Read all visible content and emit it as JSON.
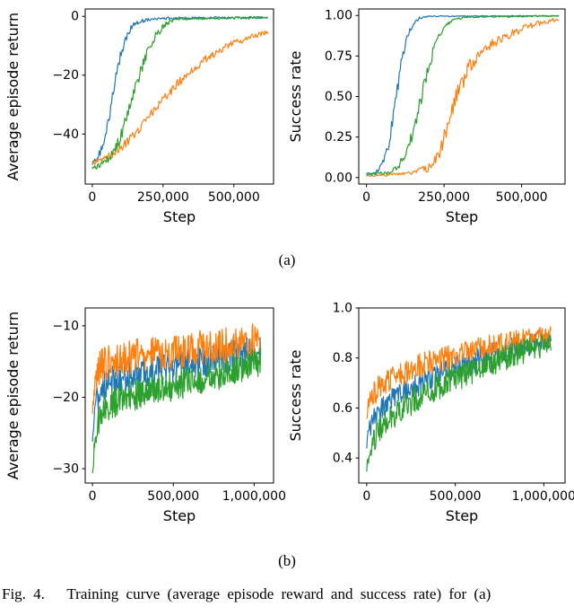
{
  "figure": {
    "panel_a_label": "(a)",
    "panel_b_label": "(b)",
    "caption": "Fig. 4.   Training curve (average episode reward and success rate) for (a)"
  },
  "palette": {
    "blue": "#1f77b4",
    "orange": "#ff7f0e",
    "green": "#2ca02c"
  },
  "chart_data": [
    {
      "id": "a_return",
      "type": "line",
      "panel": "a",
      "title": "",
      "xlabel": "Step",
      "ylabel": "Average episode return",
      "xlim": [
        -25000,
        640000
      ],
      "ylim": [
        -57,
        2.5
      ],
      "xticks": [
        {
          "v": 0,
          "label": "0"
        },
        {
          "v": 250000,
          "label": "250,000"
        },
        {
          "v": 500000,
          "label": "500,000"
        }
      ],
      "yticks": [
        {
          "v": 0,
          "label": "0"
        },
        {
          "v": -20,
          "label": "−20"
        },
        {
          "v": -40,
          "label": "−40"
        }
      ],
      "grid": false,
      "legend": "none",
      "samples": 200,
      "value_range": null,
      "series": [
        {
          "name": "blue",
          "color": "#1f77b4",
          "anchors": [
            [
              0,
              -50,
              0.8
            ],
            [
              20000,
              -48,
              1.2
            ],
            [
              40000,
              -43,
              1.5
            ],
            [
              60000,
              -34,
              2
            ],
            [
              80000,
              -23,
              2
            ],
            [
              100000,
              -13,
              1.8
            ],
            [
              120000,
              -7,
              1.5
            ],
            [
              140000,
              -3.5,
              1
            ],
            [
              160000,
              -2,
              0.8
            ],
            [
              200000,
              -1,
              0.5
            ],
            [
              300000,
              -0.6,
              0.4
            ],
            [
              620000,
              -0.4,
              0.4
            ]
          ]
        },
        {
          "name": "orange",
          "color": "#ff7f0e",
          "anchors": [
            [
              0,
              -50,
              0.8
            ],
            [
              40000,
              -48.5,
              1
            ],
            [
              80000,
              -46.5,
              1.2
            ],
            [
              120000,
              -43,
              1.5
            ],
            [
              160000,
              -39,
              1.5
            ],
            [
              200000,
              -34,
              1.5
            ],
            [
              250000,
              -28,
              1.5
            ],
            [
              300000,
              -23,
              1.5
            ],
            [
              350000,
              -18.5,
              1.3
            ],
            [
              400000,
              -14.5,
              1.3
            ],
            [
              450000,
              -11.5,
              1.2
            ],
            [
              500000,
              -9,
              1.2
            ],
            [
              560000,
              -7,
              1
            ],
            [
              620000,
              -5.5,
              1
            ]
          ]
        },
        {
          "name": "green",
          "color": "#2ca02c",
          "anchors": [
            [
              0,
              -52,
              0.8
            ],
            [
              40000,
              -50,
              1.2
            ],
            [
              70000,
              -47,
              1.5
            ],
            [
              100000,
              -41,
              2
            ],
            [
              130000,
              -31,
              2
            ],
            [
              160000,
              -22,
              2
            ],
            [
              190000,
              -13,
              1.8
            ],
            [
              220000,
              -7,
              1.5
            ],
            [
              250000,
              -3.5,
              1
            ],
            [
              280000,
              -1.5,
              0.7
            ],
            [
              320000,
              -0.8,
              0.5
            ],
            [
              620000,
              -0.4,
              0.4
            ]
          ]
        }
      ]
    },
    {
      "id": "a_success",
      "type": "line",
      "panel": "a",
      "title": "",
      "xlabel": "Step",
      "ylabel": "Success rate",
      "xlim": [
        -25000,
        640000
      ],
      "ylim": [
        -0.04,
        1.04
      ],
      "xticks": [
        {
          "v": 0,
          "label": "0"
        },
        {
          "v": 250000,
          "label": "250,000"
        },
        {
          "v": 500000,
          "label": "500,000"
        }
      ],
      "yticks": [
        {
          "v": 1.0,
          "label": "1.00"
        },
        {
          "v": 0.75,
          "label": "0.75"
        },
        {
          "v": 0.5,
          "label": "0.50"
        },
        {
          "v": 0.25,
          "label": "0.25"
        },
        {
          "v": 0.0,
          "label": "0.00"
        }
      ],
      "grid": false,
      "legend": "none",
      "samples": 200,
      "value_range": [
        0,
        1
      ],
      "series": [
        {
          "name": "blue",
          "color": "#1f77b4",
          "anchors": [
            [
              0,
              0.02,
              0.008
            ],
            [
              30000,
              0.03,
              0.01
            ],
            [
              50000,
              0.07,
              0.02
            ],
            [
              70000,
              0.18,
              0.035
            ],
            [
              90000,
              0.42,
              0.04
            ],
            [
              110000,
              0.68,
              0.035
            ],
            [
              130000,
              0.87,
              0.025
            ],
            [
              150000,
              0.95,
              0.015
            ],
            [
              170000,
              0.985,
              0.008
            ],
            [
              200000,
              0.995,
              0.004
            ],
            [
              620000,
              0.998,
              0.003
            ]
          ]
        },
        {
          "name": "orange",
          "color": "#ff7f0e",
          "anchors": [
            [
              0,
              0.01,
              0.006
            ],
            [
              100000,
              0.02,
              0.008
            ],
            [
              150000,
              0.03,
              0.012
            ],
            [
              200000,
              0.06,
              0.025
            ],
            [
              230000,
              0.12,
              0.04
            ],
            [
              260000,
              0.3,
              0.055
            ],
            [
              290000,
              0.5,
              0.055
            ],
            [
              330000,
              0.68,
              0.045
            ],
            [
              370000,
              0.78,
              0.035
            ],
            [
              420000,
              0.84,
              0.03
            ],
            [
              470000,
              0.89,
              0.025
            ],
            [
              520000,
              0.93,
              0.02
            ],
            [
              570000,
              0.96,
              0.015
            ],
            [
              620000,
              0.975,
              0.012
            ]
          ]
        },
        {
          "name": "green",
          "color": "#2ca02c",
          "anchors": [
            [
              0,
              0.02,
              0.008
            ],
            [
              70000,
              0.03,
              0.01
            ],
            [
              100000,
              0.06,
              0.02
            ],
            [
              130000,
              0.15,
              0.035
            ],
            [
              160000,
              0.35,
              0.045
            ],
            [
              190000,
              0.6,
              0.045
            ],
            [
              220000,
              0.82,
              0.03
            ],
            [
              250000,
              0.93,
              0.02
            ],
            [
              280000,
              0.975,
              0.01
            ],
            [
              320000,
              0.99,
              0.005
            ],
            [
              620000,
              0.997,
              0.003
            ]
          ]
        }
      ]
    },
    {
      "id": "b_return",
      "type": "line",
      "panel": "b",
      "title": "",
      "xlabel": "Step",
      "ylabel": "Average episode return",
      "xlim": [
        -45000,
        1120000
      ],
      "ylim": [
        -32,
        -7.5
      ],
      "xticks": [
        {
          "v": 0,
          "label": "0"
        },
        {
          "v": 500000,
          "label": "500,000"
        },
        {
          "v": 1000000,
          "label": "1,000,000"
        }
      ],
      "yticks": [
        {
          "v": -10,
          "label": "−10"
        },
        {
          "v": -20,
          "label": "−20"
        },
        {
          "v": -30,
          "label": "−30"
        }
      ],
      "grid": false,
      "legend": "none",
      "samples": 320,
      "value_range": null,
      "series": [
        {
          "name": "blue",
          "color": "#1f77b4",
          "anchors": [
            [
              0,
              -26,
              0.8
            ],
            [
              15000,
              -22,
              1.8
            ],
            [
              40000,
              -19.5,
              2.2
            ],
            [
              80000,
              -18.3,
              2.2
            ],
            [
              150000,
              -17.5,
              2.2
            ],
            [
              300000,
              -16.6,
              2.2
            ],
            [
              500000,
              -15.8,
              2.2
            ],
            [
              700000,
              -15,
              2.2
            ],
            [
              900000,
              -14,
              2.2
            ],
            [
              1040000,
              -13.5,
              2.2
            ]
          ]
        },
        {
          "name": "orange",
          "color": "#ff7f0e",
          "anchors": [
            [
              0,
              -22,
              0.8
            ],
            [
              15000,
              -18,
              2
            ],
            [
              40000,
              -16,
              2.5
            ],
            [
              80000,
              -15.2,
              2.5
            ],
            [
              150000,
              -14.8,
              2.5
            ],
            [
              300000,
              -14.2,
              2.5
            ],
            [
              500000,
              -13.6,
              2.5
            ],
            [
              700000,
              -13,
              2.5
            ],
            [
              900000,
              -12.4,
              2.5
            ],
            [
              1040000,
              -12,
              2.5
            ]
          ]
        },
        {
          "name": "green",
          "color": "#2ca02c",
          "anchors": [
            [
              0,
              -30.5,
              0.6
            ],
            [
              15000,
              -26,
              1.8
            ],
            [
              40000,
              -23,
              2
            ],
            [
              80000,
              -21.5,
              2.2
            ],
            [
              150000,
              -20.5,
              2.2
            ],
            [
              300000,
              -19.3,
              2.2
            ],
            [
              500000,
              -18.3,
              2.2
            ],
            [
              700000,
              -17.3,
              2.2
            ],
            [
              900000,
              -16,
              2.2
            ],
            [
              1040000,
              -15,
              2.2
            ]
          ]
        }
      ]
    },
    {
      "id": "b_success",
      "type": "line",
      "panel": "b",
      "title": "",
      "xlabel": "Step",
      "ylabel": "Success rate",
      "xlim": [
        -45000,
        1120000
      ],
      "ylim": [
        0.3,
        1.0
      ],
      "xticks": [
        {
          "v": 0,
          "label": "0"
        },
        {
          "v": 500000,
          "label": "500,000"
        },
        {
          "v": 1000000,
          "label": "1,000,000"
        }
      ],
      "yticks": [
        {
          "v": 1.0,
          "label": "1.0"
        },
        {
          "v": 0.8,
          "label": "0.8"
        },
        {
          "v": 0.6,
          "label": "0.6"
        },
        {
          "v": 0.4,
          "label": "0.4"
        }
      ],
      "grid": false,
      "legend": "none",
      "samples": 320,
      "value_range": [
        0,
        1
      ],
      "series": [
        {
          "name": "blue",
          "color": "#1f77b4",
          "anchors": [
            [
              0,
              0.46,
              0.03
            ],
            [
              15000,
              0.52,
              0.04
            ],
            [
              40000,
              0.56,
              0.05
            ],
            [
              80000,
              0.6,
              0.05
            ],
            [
              150000,
              0.64,
              0.05
            ],
            [
              300000,
              0.7,
              0.05
            ],
            [
              500000,
              0.76,
              0.05
            ],
            [
              700000,
              0.81,
              0.05
            ],
            [
              900000,
              0.85,
              0.045
            ],
            [
              1040000,
              0.87,
              0.04
            ]
          ]
        },
        {
          "name": "orange",
          "color": "#ff7f0e",
          "anchors": [
            [
              0,
              0.58,
              0.03
            ],
            [
              15000,
              0.63,
              0.04
            ],
            [
              40000,
              0.66,
              0.05
            ],
            [
              80000,
              0.69,
              0.05
            ],
            [
              150000,
              0.72,
              0.05
            ],
            [
              300000,
              0.77,
              0.05
            ],
            [
              500000,
              0.81,
              0.05
            ],
            [
              700000,
              0.85,
              0.045
            ],
            [
              900000,
              0.88,
              0.04
            ],
            [
              1040000,
              0.89,
              0.04
            ]
          ]
        },
        {
          "name": "green",
          "color": "#2ca02c",
          "anchors": [
            [
              0,
              0.36,
              0.03
            ],
            [
              15000,
              0.42,
              0.04
            ],
            [
              40000,
              0.47,
              0.05
            ],
            [
              80000,
              0.52,
              0.055
            ],
            [
              150000,
              0.57,
              0.055
            ],
            [
              300000,
              0.65,
              0.055
            ],
            [
              500000,
              0.72,
              0.055
            ],
            [
              700000,
              0.78,
              0.05
            ],
            [
              900000,
              0.83,
              0.05
            ],
            [
              1040000,
              0.86,
              0.045
            ]
          ]
        }
      ]
    }
  ]
}
